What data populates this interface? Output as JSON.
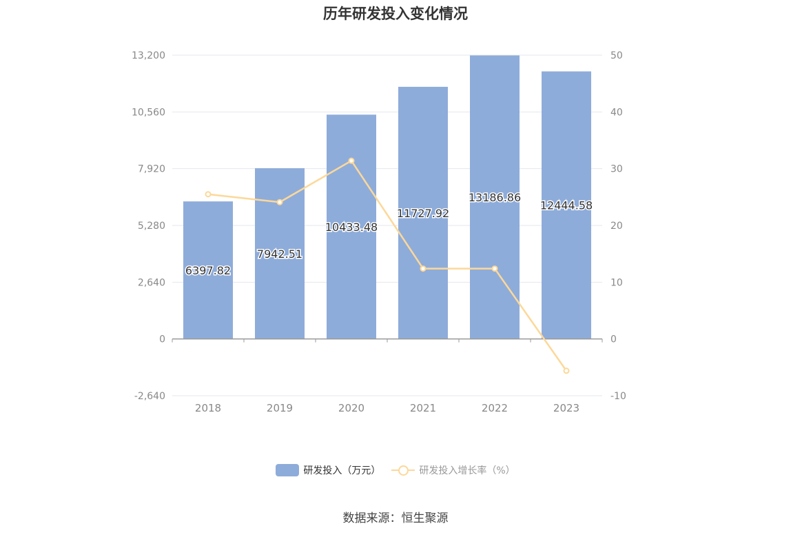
{
  "colors": {
    "bar": "#8eacda",
    "line": "#fcd899",
    "grid": "#e3e7ee",
    "axis": "#999999",
    "tick": "#888888",
    "title": "#333333"
  },
  "chart_data": {
    "type": "bar",
    "title": "历年研发投入变化情况",
    "categories": [
      "2018",
      "2019",
      "2020",
      "2021",
      "2022",
      "2023"
    ],
    "series": [
      {
        "name": "研发投入（万元）",
        "type": "bar",
        "axis": "left",
        "values": [
          6397.82,
          7942.51,
          10433.48,
          11727.92,
          13186.86,
          12444.58
        ],
        "labels": [
          "6397.82",
          "7942.51",
          "10433.48",
          "11727.92",
          "13186.86",
          "12444.58"
        ]
      },
      {
        "name": "研发投入增长率（%）",
        "type": "line",
        "axis": "right",
        "values": [
          25.5,
          24.1,
          31.4,
          12.4,
          12.4,
          -5.6
        ]
      }
    ],
    "y_left": {
      "ylim": [
        -2640,
        13200
      ],
      "ticks": [
        -2640,
        0,
        2640,
        5280,
        7920,
        10560,
        13200
      ],
      "tick_labels": [
        "-2,640",
        "0",
        "2,640",
        "5,280",
        "7,920",
        "10,560",
        "13,200"
      ]
    },
    "y_right": {
      "ylim": [
        -10,
        50
      ],
      "ticks": [
        -10,
        0,
        10,
        20,
        30,
        40,
        50
      ],
      "tick_labels": [
        "-10",
        "0",
        "10",
        "20",
        "30",
        "40",
        "50"
      ]
    },
    "grid": true,
    "legend_position": "bottom-center"
  },
  "legend": {
    "bar_label": "研发投入（万元）",
    "line_label": "研发投入增长率（%）"
  },
  "source": "数据来源：恒生聚源"
}
